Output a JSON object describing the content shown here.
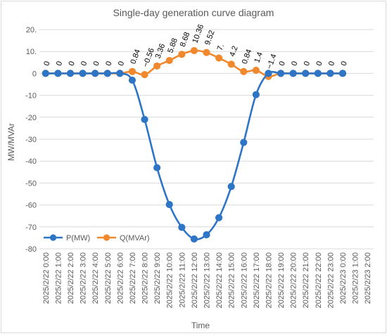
{
  "chart_data": {
    "type": "line",
    "title": "Single-day generation curve diagram",
    "xlabel": "Time",
    "ylabel": "MW/MVAr",
    "ylim": [
      -80,
      20
    ],
    "y_ticks": [
      "20.",
      "10.",
      "0",
      "-10",
      "-20",
      "-30",
      "-40",
      "-50",
      "-60",
      "-70",
      "-80"
    ],
    "grid": "horizontal",
    "legend_position": "bottom-left",
    "categories": [
      "2025/2/22 0:00",
      "2025/2/22 1:00",
      "2025/2/22 2:00",
      "2025/2/22 3:00",
      "2025/2/22 4:00",
      "2025/2/22 5:00",
      "2025/2/22 6:00",
      "2025/2/22 7:00",
      "2025/2/22 8:00",
      "2025/2/22 9:00",
      "2025/2/22 10:00",
      "2025/2/22 11:00",
      "2025/2/22 12:00",
      "2025/2/22 13:00",
      "2025/2/22 14:00",
      "2025/2/22 15:00",
      "2025/2/22 16:00",
      "2025/2/22 17:00",
      "2025/2/22 18:00",
      "2025/2/22 19:00",
      "2025/2/22 20:00",
      "2025/2/22 21:00",
      "2025/2/22 22:00",
      "2025/2/22 23:00",
      "2025/2/23 0:00",
      "2025/2/23 1:00",
      "2025/2/23 2:00"
    ],
    "series": [
      {
        "name": "P(MW)",
        "color": "#2e75c6",
        "values": [
          0,
          0,
          0,
          0,
          0,
          0,
          0,
          -3.1,
          -21,
          -43,
          -59.8,
          -70.2,
          -75.5,
          -73.6,
          -65.8,
          -51.6,
          -31.5,
          -9.7,
          0,
          0,
          0,
          0,
          0,
          0,
          0,
          null,
          null
        ]
      },
      {
        "name": "Q(MVAr)",
        "color": "#f0892e",
        "values": [
          0,
          0,
          0,
          0,
          0,
          0,
          0,
          0.84,
          -0.56,
          3.36,
          5.88,
          8.68,
          10.36,
          9.52,
          7,
          4.2,
          0.84,
          1.4,
          -1.4,
          0,
          0,
          0,
          0,
          0,
          0,
          null,
          null
        ],
        "data_labels": [
          "0",
          "0",
          "0",
          "0",
          "0",
          "0",
          "0",
          "0.84",
          "−0.56",
          "3.36",
          "5.88",
          "8.68",
          "10.36",
          "9.52",
          "7.",
          "4.2",
          "0.84",
          "1.4",
          "−1.4",
          "0",
          "0",
          "0",
          "0",
          "0",
          "0"
        ]
      }
    ]
  }
}
